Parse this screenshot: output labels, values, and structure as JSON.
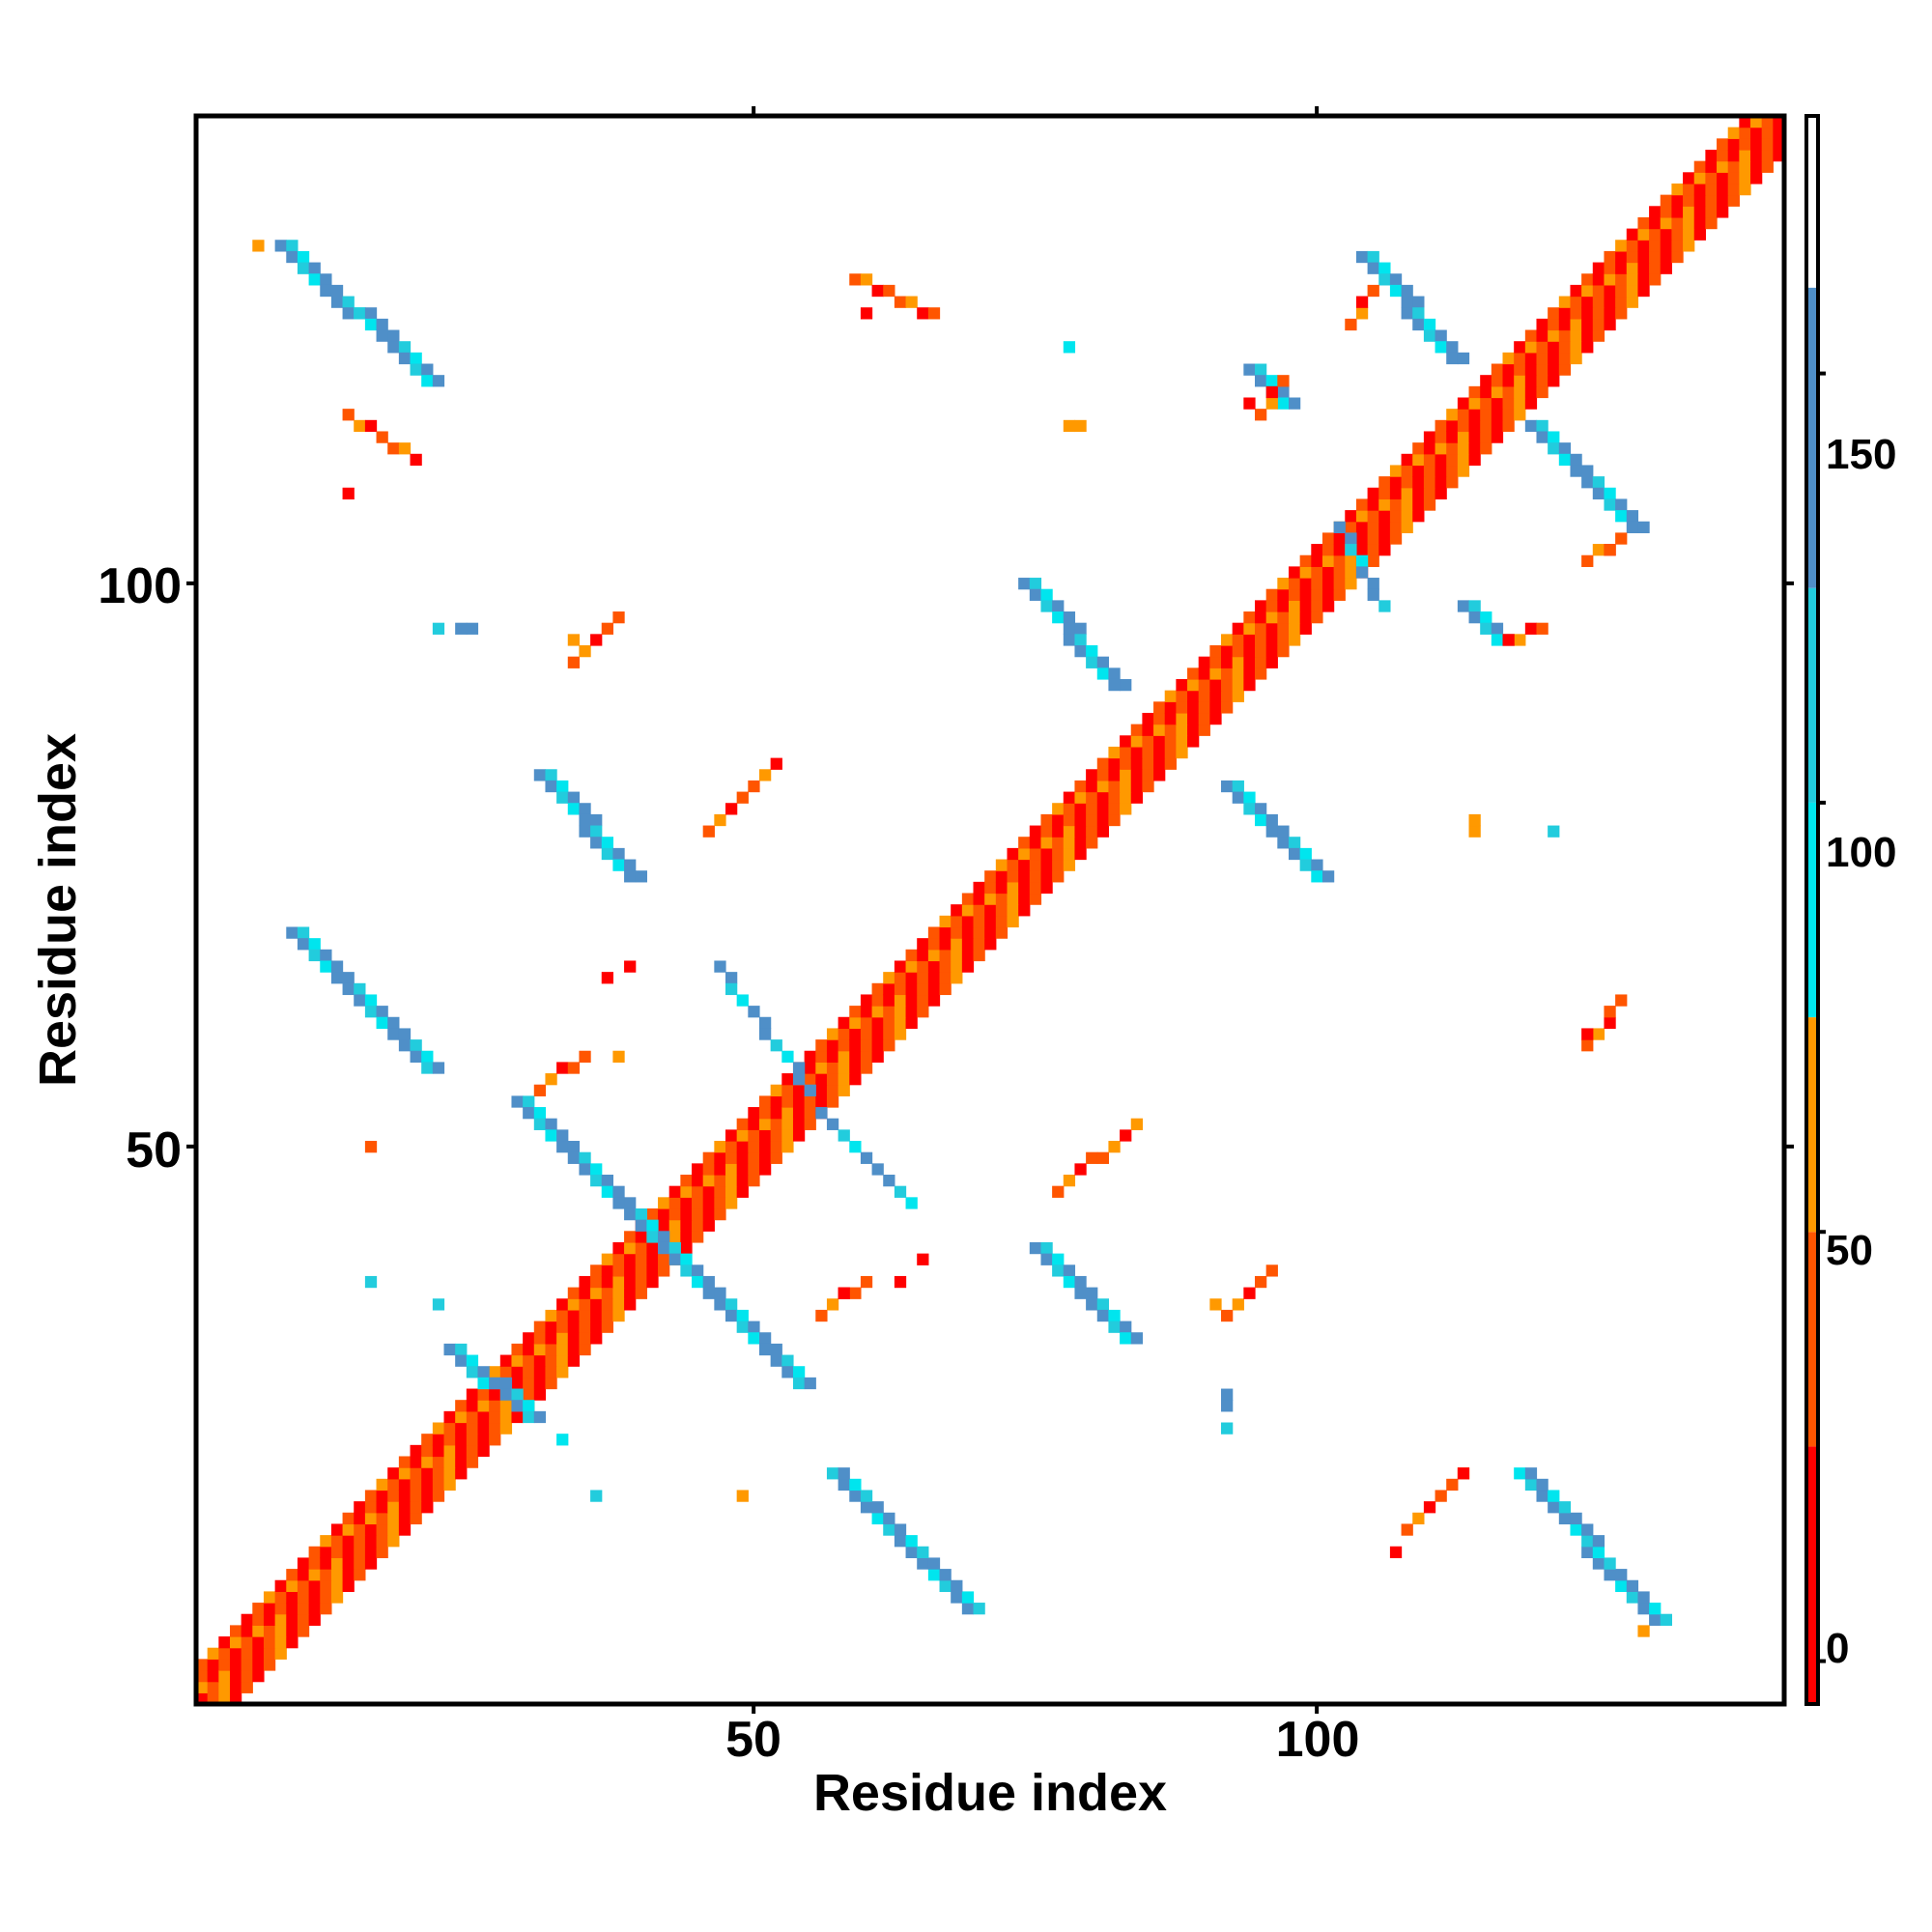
{
  "chart_data": {
    "type": "heatmap",
    "title": "",
    "xlabel": "Residue index",
    "ylabel": "Residue index",
    "xlim": [
      1,
      141
    ],
    "ylim": [
      1,
      141
    ],
    "xticks": [
      50,
      100
    ],
    "yticks": [
      50,
      100
    ],
    "xtick_labels": [
      "50",
      "100"
    ],
    "ytick_labels": [
      "50",
      "100"
    ],
    "grid": false,
    "colorbar": {
      "range": [
        -5,
        180
      ],
      "ticks": [
        0,
        50,
        100,
        150
      ],
      "tick_labels": [
        "0",
        "50",
        "100",
        "150"
      ],
      "bands": [
        {
          "from": -5,
          "to": 25,
          "color": "#ff0000"
        },
        {
          "from": 25,
          "to": 50,
          "color": "#ff5500"
        },
        {
          "from": 50,
          "to": 75,
          "color": "#ff9900"
        },
        {
          "from": 75,
          "to": 100,
          "color": "#00e5ee"
        },
        {
          "from": 100,
          "to": 125,
          "color": "#22ccdd"
        },
        {
          "from": 125,
          "to": 160,
          "color": "#4f8fc8"
        },
        {
          "from": 160,
          "to": 180,
          "color": "#ffffff"
        }
      ]
    },
    "segments": [
      {
        "name": "diagonal-band",
        "from": [
          1,
          1
        ],
        "to": [
          141,
          141
        ],
        "width": 4,
        "palette": "diag"
      },
      {
        "name": "sheet-1a",
        "from": [
          8,
          130
        ],
        "to": [
          21,
          118
        ],
        "width": 2,
        "palette": "blue"
      },
      {
        "name": "sheet-1b",
        "from": [
          130,
          8
        ],
        "to": [
          118,
          21
        ],
        "width": 2,
        "palette": "blue"
      },
      {
        "name": "sheet-2a",
        "from": [
          9,
          69
        ],
        "to": [
          21,
          57
        ],
        "width": 2,
        "palette": "blue"
      },
      {
        "name": "sheet-2b",
        "from": [
          69,
          9
        ],
        "to": [
          57,
          21
        ],
        "width": 2,
        "palette": "blue"
      },
      {
        "name": "sheet-3a",
        "from": [
          29,
          54
        ],
        "to": [
          41,
          42
        ],
        "width": 2,
        "palette": "blue"
      },
      {
        "name": "sheet-3b",
        "from": [
          42,
          41
        ],
        "to": [
          54,
          29
        ],
        "width": 2,
        "palette": "blue"
      },
      {
        "name": "sheet-4a",
        "from": [
          31,
          83
        ],
        "to": [
          39,
          74
        ],
        "width": 2,
        "palette": "blue"
      },
      {
        "name": "sheet-4b",
        "from": [
          92,
          82
        ],
        "to": [
          100,
          74
        ],
        "width": 2,
        "palette": "blue"
      },
      {
        "name": "sheet-5a",
        "from": [
          74,
          100
        ],
        "to": [
          82,
          91
        ],
        "width": 2,
        "palette": "blue"
      },
      {
        "name": "sheet-5b",
        "from": [
          75,
          41
        ],
        "to": [
          83,
          33
        ],
        "width": 2,
        "palette": "blue"
      },
      {
        "name": "sheet-6a",
        "from": [
          104,
          129
        ],
        "to": [
          112,
          120
        ],
        "width": 2,
        "palette": "blue"
      },
      {
        "name": "sheet-6b",
        "from": [
          119,
          114
        ],
        "to": [
          128,
          105
        ],
        "width": 2,
        "palette": "blue"
      },
      {
        "name": "helix-contact-a",
        "from": [
          47,
          66
        ],
        "to": [
          55,
          55
        ],
        "width": 1,
        "palette": "blue"
      },
      {
        "name": "helix-contact-b",
        "from": [
          56,
          53
        ],
        "to": [
          64,
          45
        ],
        "width": 1,
        "palette": "blue"
      },
      {
        "name": "helix-contact-c",
        "from": [
          102,
          105
        ],
        "to": [
          106,
          98
        ],
        "width": 1,
        "palette": "blue"
      },
      {
        "name": "helix-contact-d",
        "from": [
          94,
          119
        ],
        "to": [
          97,
          116
        ],
        "width": 2,
        "palette": "blue"
      },
      {
        "name": "helix-contact-e",
        "from": [
          113,
          98
        ],
        "to": [
          116,
          95
        ],
        "width": 2,
        "palette": "blue"
      },
      {
        "name": "helix-contact-f",
        "from": [
          23,
          32
        ],
        "to": [
          30,
          26
        ],
        "width": 2,
        "palette": "blue"
      },
      {
        "name": "contact-r1",
        "from": [
          59,
          127
        ],
        "to": [
          66,
          124
        ],
        "width": 1,
        "palette": "orange"
      },
      {
        "name": "contact-r2",
        "from": [
          14,
          115
        ],
        "to": [
          20,
          111
        ],
        "width": 1,
        "palette": "orange"
      },
      {
        "name": "contact-r3",
        "from": [
          34,
          93
        ],
        "to": [
          38,
          97
        ],
        "width": 1,
        "palette": "orange"
      },
      {
        "name": "contact-r4",
        "from": [
          46,
          78
        ],
        "to": [
          52,
          84
        ],
        "width": 1,
        "palette": "orange"
      },
      {
        "name": "contact-r5",
        "from": [
          31,
          55
        ],
        "to": [
          35,
          58
        ],
        "width": 1,
        "palette": "orange"
      },
      {
        "name": "contact-r6",
        "from": [
          56,
          35
        ],
        "to": [
          60,
          38
        ],
        "width": 1,
        "palette": "orange"
      },
      {
        "name": "contact-r7",
        "from": [
          77,
          46
        ],
        "to": [
          83,
          51
        ],
        "width": 1,
        "palette": "orange"
      },
      {
        "name": "contact-r8",
        "from": [
          92,
          35
        ],
        "to": [
          96,
          39
        ],
        "width": 1,
        "palette": "orange"
      },
      {
        "name": "contact-r9",
        "from": [
          108,
          16
        ],
        "to": [
          113,
          21
        ],
        "width": 1,
        "palette": "orange"
      },
      {
        "name": "contact-r10",
        "from": [
          124,
          59
        ],
        "to": [
          127,
          63
        ],
        "width": 1,
        "palette": "orange"
      },
      {
        "name": "contact-r11",
        "from": [
          103,
          123
        ],
        "to": [
          105,
          126
        ],
        "width": 1,
        "palette": "orange"
      },
      {
        "name": "contact-r12",
        "from": [
          95,
          115
        ],
        "to": [
          97,
          118
        ],
        "width": 1,
        "palette": "orange"
      },
      {
        "name": "contact-r13",
        "from": [
          124,
          102
        ],
        "to": [
          127,
          104
        ],
        "width": 1,
        "palette": "orange"
      },
      {
        "name": "contact-r14",
        "from": [
          117,
          95
        ],
        "to": [
          120,
          96
        ],
        "width": 1,
        "palette": "orange"
      }
    ],
    "points": [
      {
        "x": 14,
        "y": 108,
        "color": "#ff0000"
      },
      {
        "x": 60,
        "y": 124,
        "color": "#ff0000"
      },
      {
        "x": 78,
        "y": 121,
        "color": "#00e5ee"
      },
      {
        "x": 78,
        "y": 114,
        "color": "#ff9900"
      },
      {
        "x": 79,
        "y": 114,
        "color": "#ff9900"
      },
      {
        "x": 94,
        "y": 116,
        "color": "#ff0000"
      },
      {
        "x": 22,
        "y": 96,
        "color": "#22ccdd"
      },
      {
        "x": 24,
        "y": 96,
        "color": "#4f8fc8"
      },
      {
        "x": 25,
        "y": 96,
        "color": "#4f8fc8"
      },
      {
        "x": 34,
        "y": 95,
        "color": "#ff9900"
      },
      {
        "x": 16,
        "y": 50,
        "color": "#ff5500"
      },
      {
        "x": 16,
        "y": 38,
        "color": "#22ccdd"
      },
      {
        "x": 22,
        "y": 36,
        "color": "#22ccdd"
      },
      {
        "x": 36,
        "y": 19,
        "color": "#22ccdd"
      },
      {
        "x": 33,
        "y": 24,
        "color": "#00e5ee"
      },
      {
        "x": 49,
        "y": 19,
        "color": "#ff9900"
      },
      {
        "x": 65,
        "y": 40,
        "color": "#ff0000"
      },
      {
        "x": 63,
        "y": 38,
        "color": "#ff0000"
      },
      {
        "x": 58,
        "y": 37,
        "color": "#ff0000"
      },
      {
        "x": 38,
        "y": 58,
        "color": "#ff9900"
      },
      {
        "x": 37,
        "y": 65,
        "color": "#ff0000"
      },
      {
        "x": 39,
        "y": 66,
        "color": "#ff0000"
      },
      {
        "x": 84,
        "y": 52,
        "color": "#ff9900"
      },
      {
        "x": 91,
        "y": 36,
        "color": "#ff9900"
      },
      {
        "x": 92,
        "y": 28,
        "color": "#4f8fc8"
      },
      {
        "x": 92,
        "y": 27,
        "color": "#4f8fc8"
      },
      {
        "x": 92,
        "y": 25,
        "color": "#22ccdd"
      },
      {
        "x": 107,
        "y": 14,
        "color": "#ff0000"
      },
      {
        "x": 113,
        "y": 21,
        "color": "#ff0000"
      },
      {
        "x": 124,
        "y": 60,
        "color": "#ff0000"
      },
      {
        "x": 114,
        "y": 78,
        "color": "#ff9900"
      },
      {
        "x": 114,
        "y": 79,
        "color": "#ff9900"
      },
      {
        "x": 121,
        "y": 78,
        "color": "#22ccdd"
      },
      {
        "x": 117,
        "y": 95,
        "color": "#ff0000"
      },
      {
        "x": 126,
        "y": 103,
        "color": "#ff5500"
      },
      {
        "x": 129,
        "y": 7,
        "color": "#ff9900"
      },
      {
        "x": 6,
        "y": 130,
        "color": "#ff9900"
      }
    ]
  }
}
